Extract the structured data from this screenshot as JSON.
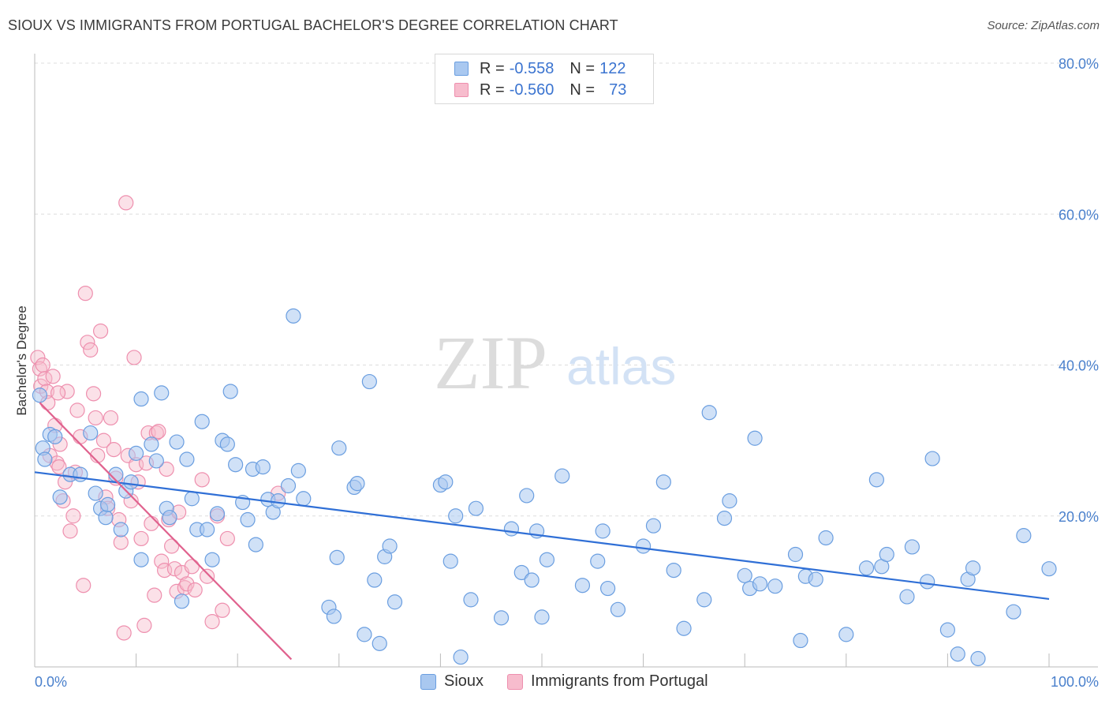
{
  "header": {
    "title": "SIOUX VS IMMIGRANTS FROM PORTUGAL BACHELOR'S DEGREE CORRELATION CHART",
    "source": "Source: ZipAtlas.com"
  },
  "legend": {
    "rows": [
      {
        "r_label": "R =",
        "r_value": "-0.558",
        "n_label": "N =",
        "n_value": "122"
      },
      {
        "r_label": "R =",
        "r_value": "-0.560",
        "n_label": "N =",
        "n_value": "73"
      }
    ]
  },
  "bottom_legend": {
    "series1": "Sioux",
    "series2": "Immigrants from Portugal"
  },
  "watermark": {
    "zip": "ZIP",
    "atlas": "atlas"
  },
  "colors": {
    "sioux_fill": "#a9c8f0",
    "sioux_stroke": "#6a9ee0",
    "sioux_line": "#2f6fd6",
    "portugal_fill": "#f7bccd",
    "portugal_stroke": "#ee8fae",
    "portugal_line": "#e0628e",
    "axis_label": "#4a80cc",
    "grid": "#dddddd"
  },
  "chart_data": {
    "type": "scatter",
    "title": "SIOUX VS IMMIGRANTS FROM PORTUGAL BACHELOR'S DEGREE CORRELATION CHART",
    "xlabel": "",
    "ylabel": "Bachelor's Degree",
    "xlim": [
      0,
      100
    ],
    "ylim": [
      0,
      80
    ],
    "x_tick_labels": [
      "0.0%",
      "100.0%"
    ],
    "y_ticks": [
      20,
      40,
      60,
      80
    ],
    "y_tick_labels": [
      "20.0%",
      "40.0%",
      "60.0%",
      "80.0%"
    ],
    "grid": true,
    "series": [
      {
        "name": "Sioux",
        "r": -0.558,
        "n": 122,
        "trendline": {
          "x": [
            0,
            100
          ],
          "y": [
            25.8,
            9.0
          ]
        },
        "points": [
          [
            0.5,
            36
          ],
          [
            0.8,
            29
          ],
          [
            1,
            27.5
          ],
          [
            1.5,
            30.8
          ],
          [
            2,
            30.5
          ],
          [
            2.5,
            22.5
          ],
          [
            3.5,
            25.5
          ],
          [
            4.5,
            25.5
          ],
          [
            5.5,
            31
          ],
          [
            6,
            23
          ],
          [
            6.5,
            21
          ],
          [
            7,
            19.8
          ],
          [
            7.2,
            21.5
          ],
          [
            8,
            25.5
          ],
          [
            8.5,
            18.2
          ],
          [
            9,
            23.3
          ],
          [
            9.5,
            24.5
          ],
          [
            10,
            28.3
          ],
          [
            10.5,
            14.2
          ],
          [
            10.5,
            35.5
          ],
          [
            11.5,
            29.5
          ],
          [
            12,
            27.3
          ],
          [
            12.5,
            36.3
          ],
          [
            13,
            21
          ],
          [
            13.3,
            19.8
          ],
          [
            14,
            29.8
          ],
          [
            14.5,
            8.7
          ],
          [
            15,
            27.5
          ],
          [
            15.5,
            22.3
          ],
          [
            16,
            18.2
          ],
          [
            16.5,
            32.5
          ],
          [
            17,
            18.2
          ],
          [
            17.5,
            14.2
          ],
          [
            18,
            20.3
          ],
          [
            18.5,
            30
          ],
          [
            19,
            29.5
          ],
          [
            19.3,
            36.5
          ],
          [
            19.8,
            26.8
          ],
          [
            20.5,
            21.8
          ],
          [
            21,
            19.5
          ],
          [
            21.5,
            26.2
          ],
          [
            21.8,
            16.2
          ],
          [
            22.5,
            26.5
          ],
          [
            23,
            22.2
          ],
          [
            23.5,
            20.5
          ],
          [
            24,
            22
          ],
          [
            25,
            24
          ],
          [
            25.5,
            46.5
          ],
          [
            26,
            26
          ],
          [
            26.5,
            22.3
          ],
          [
            29,
            7.9
          ],
          [
            29.5,
            6.7
          ],
          [
            29.8,
            14.5
          ],
          [
            30,
            29
          ],
          [
            31.5,
            23.8
          ],
          [
            31.8,
            24.3
          ],
          [
            32.5,
            4.3
          ],
          [
            33,
            37.8
          ],
          [
            33.5,
            11.5
          ],
          [
            34,
            3.1
          ],
          [
            34.5,
            14.6
          ],
          [
            35,
            16
          ],
          [
            35.5,
            8.6
          ],
          [
            40,
            24.1
          ],
          [
            40.5,
            24.5
          ],
          [
            41,
            14
          ],
          [
            41.5,
            20
          ],
          [
            42,
            1.3
          ],
          [
            43,
            8.9
          ],
          [
            43.5,
            21
          ],
          [
            46,
            6.5
          ],
          [
            47,
            18.3
          ],
          [
            48,
            12.5
          ],
          [
            48.5,
            22.7
          ],
          [
            49,
            11.5
          ],
          [
            49.5,
            18
          ],
          [
            50,
            6.6
          ],
          [
            50.5,
            14.2
          ],
          [
            52,
            25.3
          ],
          [
            54,
            10.8
          ],
          [
            55.5,
            14
          ],
          [
            56,
            18
          ],
          [
            56.5,
            10.4
          ],
          [
            57.5,
            7.6
          ],
          [
            60,
            16
          ],
          [
            61,
            18.7
          ],
          [
            62,
            24.5
          ],
          [
            63,
            12.8
          ],
          [
            64,
            5.1
          ],
          [
            66,
            8.9
          ],
          [
            66.5,
            33.7
          ],
          [
            68,
            19.7
          ],
          [
            68.5,
            22
          ],
          [
            70,
            12.1
          ],
          [
            70.5,
            10.4
          ],
          [
            71,
            30.3
          ],
          [
            71.5,
            11
          ],
          [
            73,
            10.7
          ],
          [
            75.5,
            3.5
          ],
          [
            75,
            14.9
          ],
          [
            76,
            12
          ],
          [
            77,
            11.6
          ],
          [
            78,
            17.1
          ],
          [
            80,
            4.3
          ],
          [
            82,
            13.1
          ],
          [
            83,
            24.8
          ],
          [
            83.5,
            13.3
          ],
          [
            84,
            14.9
          ],
          [
            86,
            9.3
          ],
          [
            86.5,
            15.9
          ],
          [
            88,
            11.3
          ],
          [
            88.5,
            27.6
          ],
          [
            90,
            4.9
          ],
          [
            91,
            1.7
          ],
          [
            92,
            11.6
          ],
          [
            92.5,
            13.1
          ],
          [
            93,
            1.1
          ],
          [
            96.5,
            7.3
          ],
          [
            97.5,
            17.4
          ],
          [
            100,
            13
          ]
        ]
      },
      {
        "name": "Immigrants from Portugal",
        "r": -0.56,
        "n": 73,
        "trendline": {
          "x": [
            0.5,
            25.3
          ],
          "y": [
            35.0,
            1.0
          ]
        },
        "points": [
          [
            0.3,
            41
          ],
          [
            0.5,
            39.5
          ],
          [
            0.6,
            37.2
          ],
          [
            0.8,
            40
          ],
          [
            1,
            38.2
          ],
          [
            1.2,
            36.5
          ],
          [
            1.3,
            35
          ],
          [
            1.5,
            28
          ],
          [
            1.8,
            38.5
          ],
          [
            2,
            32
          ],
          [
            2.2,
            27
          ],
          [
            2.4,
            26.5
          ],
          [
            2.5,
            29.5
          ],
          [
            2.8,
            22
          ],
          [
            3,
            24.5
          ],
          [
            3.2,
            36.5
          ],
          [
            3.5,
            18
          ],
          [
            3.8,
            20
          ],
          [
            4,
            25.8
          ],
          [
            4.2,
            34
          ],
          [
            4.5,
            30.5
          ],
          [
            4.8,
            10.8
          ],
          [
            5,
            49.5
          ],
          [
            5.2,
            43
          ],
          [
            5.5,
            42
          ],
          [
            5.8,
            36.2
          ],
          [
            6,
            33
          ],
          [
            6.2,
            28
          ],
          [
            6.5,
            44.5
          ],
          [
            6.8,
            30
          ],
          [
            7,
            22.5
          ],
          [
            7.2,
            21
          ],
          [
            7.5,
            33
          ],
          [
            7.8,
            28.8
          ],
          [
            8,
            25
          ],
          [
            8.3,
            19.5
          ],
          [
            8.5,
            16.5
          ],
          [
            8.8,
            4.5
          ],
          [
            9,
            61.5
          ],
          [
            9.2,
            28
          ],
          [
            9.5,
            22
          ],
          [
            9.8,
            41
          ],
          [
            10,
            26.8
          ],
          [
            10.2,
            24.5
          ],
          [
            10.5,
            17
          ],
          [
            10.8,
            5.5
          ],
          [
            11,
            27
          ],
          [
            11.2,
            31
          ],
          [
            11.5,
            19
          ],
          [
            11.8,
            9.5
          ],
          [
            12,
            31
          ],
          [
            12.2,
            31.2
          ],
          [
            12.5,
            14
          ],
          [
            12.8,
            12.8
          ],
          [
            13,
            26.2
          ],
          [
            13.2,
            19.5
          ],
          [
            13.5,
            16
          ],
          [
            13.8,
            13
          ],
          [
            14,
            10
          ],
          [
            14.2,
            20.5
          ],
          [
            14.5,
            12.5
          ],
          [
            14.8,
            10.5
          ],
          [
            15,
            11
          ],
          [
            15.5,
            13.3
          ],
          [
            15.8,
            10.2
          ],
          [
            16.5,
            24.8
          ],
          [
            17,
            12
          ],
          [
            17.5,
            6
          ],
          [
            18,
            20
          ],
          [
            18.5,
            7.5
          ],
          [
            19,
            17
          ],
          [
            24,
            23
          ],
          [
            2.3,
            36.3
          ]
        ]
      }
    ]
  }
}
